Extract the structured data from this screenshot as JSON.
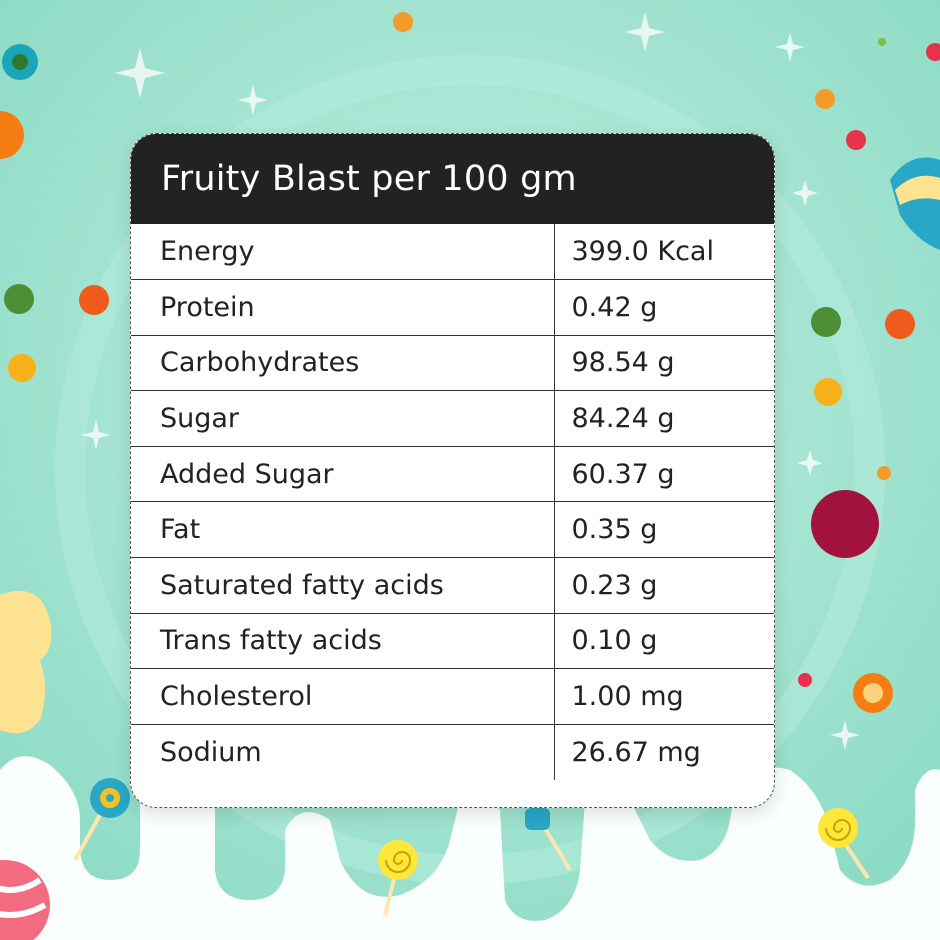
{
  "colors": {
    "background": "#a8e6d4",
    "header_bg": "#222222",
    "header_text": "#ffffff",
    "drip": "#fafefd"
  },
  "card": {
    "title": "Fruity Blast per 100 gm",
    "rows": [
      {
        "nutrient": "Energy",
        "value": "399.0 Kcal"
      },
      {
        "nutrient": "Protein",
        "value": "0.42 g"
      },
      {
        "nutrient": "Carbohydrates",
        "value": "98.54 g"
      },
      {
        "nutrient": "Sugar",
        "value": "84.24 g"
      },
      {
        "nutrient": "Added Sugar",
        "value": "60.37 g"
      },
      {
        "nutrient": "Fat",
        "value": "0.35 g"
      },
      {
        "nutrient": "Saturated fatty acids",
        "value": "0.23 g"
      },
      {
        "nutrient": "Trans fatty acids",
        "value": "0.10 g"
      },
      {
        "nutrient": "Cholesterol",
        "value": "1.00 mg"
      },
      {
        "nutrient": "Sodium",
        "value": "26.67 mg"
      }
    ]
  },
  "decorations": {
    "icons": [
      "candy-ball-icon",
      "lollipop-icon",
      "sparkle-icon",
      "swirl-candy-icon",
      "gummy-bear-icon"
    ]
  }
}
